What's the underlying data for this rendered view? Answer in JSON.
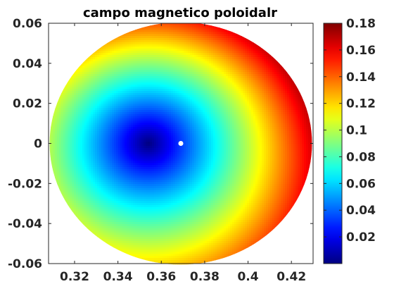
{
  "chart_data": {
    "type": "heatmap",
    "title": "campo magnetico poloidalr",
    "xlabel": "",
    "ylabel": "",
    "xlim": [
      0.308,
      0.43
    ],
    "ylim": [
      -0.06,
      0.06
    ],
    "xticks": [
      0.32,
      0.34,
      0.36,
      0.38,
      0.4,
      0.42
    ],
    "xtick_labels": [
      "0.32",
      "0.34",
      "0.36",
      "0.38",
      "0.4",
      "0.42"
    ],
    "yticks": [
      -0.06,
      -0.04,
      -0.02,
      0,
      0.02,
      0.04,
      0.06
    ],
    "ytick_labels": [
      "-0.06",
      "-0.04",
      "-0.02",
      "0",
      "0.02",
      "0.04",
      "0.06"
    ],
    "colormap": "jet",
    "clim": [
      0.0,
      0.18
    ],
    "colorbar_ticks": [
      0.02,
      0.04,
      0.06,
      0.08,
      0.1,
      0.12,
      0.14,
      0.16,
      0.18
    ],
    "colorbar_tick_labels": [
      "0.02",
      "0.04",
      "0.06",
      "0.08",
      "0.1",
      "0.12",
      "0.14",
      "0.16",
      "0.18"
    ],
    "colorbar_position": "right",
    "grid": false,
    "domain": {
      "shape": "disk",
      "center": [
        0.369,
        0.0
      ],
      "radius_x": 0.0605,
      "radius_y": 0.0605
    },
    "field_minimum": {
      "x": 0.354,
      "y": 0.0,
      "value": 0.0
    },
    "field_maximum_location": "upper-right edge",
    "field_maximum_value": 0.18,
    "marker": {
      "x": 0.369,
      "y": 0.0,
      "color": "#ffffff"
    }
  }
}
